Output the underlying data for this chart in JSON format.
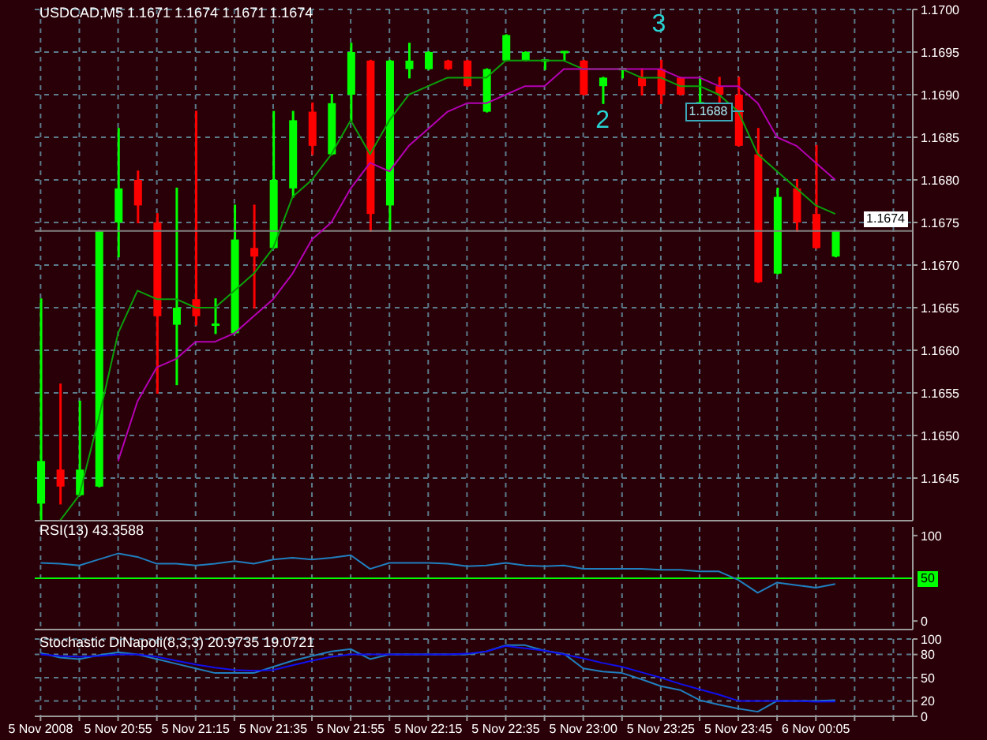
{
  "chart_data": [
    {
      "type": "candlestick",
      "title": "USDCAD,M5 1.1671 1.1674 1.1671 1.1674",
      "categories": [
        null,
        null,
        null,
        null,
        null,
        null,
        null,
        null,
        null,
        null,
        null,
        null,
        null,
        null,
        null,
        null,
        null,
        null,
        null,
        null,
        null,
        null,
        null,
        null,
        null,
        null,
        null,
        null,
        null,
        null,
        null,
        null,
        null,
        null,
        null,
        null,
        null,
        null,
        null,
        null,
        null,
        null
      ],
      "ohlc": [
        [
          1.1642,
          1.1666,
          1.164,
          1.1647
        ],
        [
          1.1646,
          1.1656,
          1.1642,
          1.1644
        ],
        [
          1.1643,
          1.1654,
          1.1643,
          1.1646
        ],
        [
          1.1644,
          1.1674,
          1.1644,
          1.1674
        ],
        [
          1.1675,
          1.1686,
          1.1671,
          1.1679
        ],
        [
          1.168,
          1.1681,
          1.1675,
          1.1677
        ],
        [
          1.1675,
          1.1676,
          1.1655,
          1.1664
        ],
        [
          1.1663,
          1.1679,
          1.1656,
          1.1665
        ],
        [
          1.1666,
          1.1688,
          1.1663,
          1.1664
        ],
        [
          1.1663,
          1.1666,
          1.1662,
          1.1663
        ],
        [
          1.1662,
          1.1677,
          1.1662,
          1.1673
        ],
        [
          1.1672,
          1.1677,
          1.1665,
          1.1671
        ],
        [
          1.1672,
          1.1688,
          1.1672,
          1.168
        ],
        [
          1.1679,
          1.1688,
          1.1678,
          1.1687
        ],
        [
          1.1688,
          1.1689,
          1.1683,
          1.1684
        ],
        [
          1.1683,
          1.169,
          1.1683,
          1.1689
        ],
        [
          1.169,
          1.1696,
          1.1687,
          1.1695
        ],
        [
          1.1694,
          1.1694,
          1.1674,
          1.1676
        ],
        [
          1.1677,
          1.1694,
          1.1674,
          1.1694
        ],
        [
          1.1693,
          1.1696,
          1.1692,
          1.1694
        ],
        [
          1.1693,
          1.1695,
          1.1693,
          1.1695
        ],
        [
          1.1694,
          1.1694,
          1.1693,
          1.1693
        ],
        [
          1.1694,
          1.1694,
          1.1691,
          1.1691
        ],
        [
          1.1688,
          1.1693,
          1.1688,
          1.1693
        ],
        [
          1.1694,
          1.1697,
          1.1694,
          1.1697
        ],
        [
          1.1694,
          1.1695,
          1.1694,
          1.1695
        ],
        [
          1.1694,
          1.1694,
          1.1693,
          1.1694
        ],
        [
          1.1695,
          1.1695,
          1.1694,
          1.1695
        ],
        [
          1.1694,
          1.1694,
          1.169,
          1.169
        ],
        [
          1.1691,
          1.1692,
          1.1689,
          1.1692
        ],
        [
          1.1693,
          1.1693,
          1.1692,
          1.1693
        ],
        [
          1.1692,
          1.1693,
          1.169,
          1.1691
        ],
        [
          1.1693,
          1.1694,
          1.1689,
          1.169
        ],
        [
          1.1692,
          1.1692,
          1.169,
          1.169
        ],
        [
          1.1689,
          1.1692,
          1.1689,
          1.1689
        ],
        [
          1.1691,
          1.1692,
          1.1689,
          1.169
        ],
        [
          1.169,
          1.1692,
          1.1684,
          1.1684
        ],
        [
          1.1683,
          1.1686,
          1.1668,
          1.1668
        ],
        [
          1.1669,
          1.1679,
          1.1669,
          1.1678
        ],
        [
          1.1679,
          1.168,
          1.1674,
          1.1675
        ],
        [
          1.1676,
          1.1684,
          1.1672,
          1.1672
        ],
        [
          1.1671,
          1.1674,
          1.1671,
          1.1674
        ]
      ],
      "colors": [
        "#00ff00",
        "#ff0000",
        "#00ff00",
        "#00ff00",
        "#00ff00",
        "#ff0000",
        "#ff0000",
        "#00ff00",
        "#ff0000",
        "#00ff00",
        "#00ff00",
        "#ff0000",
        "#00ff00",
        "#00ff00",
        "#ff0000",
        "#00ff00",
        "#00ff00",
        "#ff0000",
        "#00ff00",
        "#00ff00",
        "#00ff00",
        "#ff0000",
        "#ff0000",
        "#00ff00",
        "#00ff00",
        "#00ff00",
        "#00ff00",
        "#00ff00",
        "#ff0000",
        "#00ff00",
        "#00ff00",
        "#ff0000",
        "#ff0000",
        "#ff0000",
        "#00ff00",
        "#ff0000",
        "#ff0000",
        "#ff0000",
        "#00ff00",
        "#ff0000",
        "#ff0000",
        "#00ff00"
      ],
      "series": [
        {
          "type": "line",
          "color": "#0aa00a",
          "values": [
            null,
            1.164,
            1.1643,
            1.1652,
            1.1662,
            1.1667,
            1.1666,
            1.1666,
            1.1665,
            1.1665,
            1.1667,
            1.1669,
            1.1672,
            1.1678,
            1.168,
            1.1683,
            1.1687,
            1.1683,
            1.1687,
            1.169,
            1.1691,
            1.1692,
            1.1692,
            1.1692,
            1.1694,
            1.1694,
            1.1694,
            1.1694,
            1.1693,
            1.1693,
            1.1693,
            1.1692,
            1.1692,
            1.1691,
            1.1691,
            1.169,
            1.1688,
            1.1683,
            1.1681,
            1.1679,
            1.1677,
            1.1676
          ]
        },
        {
          "type": "line",
          "color": "#b400b4",
          "values": [
            null,
            null,
            null,
            null,
            1.1647,
            1.1654,
            1.1658,
            1.1659,
            1.1661,
            1.1661,
            1.1662,
            1.1664,
            1.1666,
            1.1669,
            1.1673,
            1.1675,
            1.1679,
            1.1682,
            1.1681,
            1.1684,
            1.1686,
            1.1688,
            1.1689,
            1.1689,
            1.169,
            1.1691,
            1.1691,
            1.1693,
            1.1693,
            1.1693,
            1.1693,
            1.1693,
            1.1693,
            1.1692,
            1.1692,
            1.1691,
            1.1691,
            1.1689,
            1.1685,
            1.1684,
            1.1682,
            1.168
          ]
        }
      ],
      "ylim": [
        1.164,
        1.17
      ],
      "yticks": [
        1.1645,
        {
          "value": 1.165,
          "label": "1.1650"
        },
        1.1655,
        {
          "value": 1.166,
          "label": "1.1660"
        },
        1.1665,
        {
          "value": 1.167,
          "label": "1.1670"
        },
        1.1675,
        {
          "value": 1.168,
          "label": "1.1680"
        },
        1.1685,
        {
          "value": 1.169,
          "label": "1.1690"
        },
        1.1695,
        {
          "value": 1.17,
          "label": "1.1700"
        }
      ],
      "grid": true,
      "tick_labels": "y",
      "ref_lines": [
        {
          "axis": "y",
          "value": 1.1674,
          "label": "1.1674",
          "color": "#808080"
        }
      ],
      "annotations": [
        "3",
        "2",
        {
          "text": "1.1688",
          "y": 1.1688
        }
      ]
    },
    {
      "type": "line",
      "title": "RSI(13) 43.3588",
      "categories": [
        null,
        null,
        null,
        null,
        null,
        null,
        null,
        null,
        null,
        null,
        null,
        null,
        null,
        null,
        null,
        null,
        null,
        null,
        null,
        null,
        null,
        null,
        null,
        null,
        null,
        null,
        null,
        null,
        null,
        null,
        null,
        null,
        null,
        null,
        null,
        null,
        null,
        null,
        null,
        null,
        null,
        null
      ],
      "series": [
        {
          "color": "#1f7fbf",
          "values": [
            68,
            67,
            65,
            72,
            79,
            75,
            67,
            67,
            65,
            67,
            70,
            67,
            72,
            74,
            72,
            74,
            77,
            61,
            68,
            68,
            68,
            67,
            64,
            65,
            68,
            65,
            64,
            65,
            61,
            61,
            61,
            61,
            60,
            60,
            58,
            58,
            48,
            33,
            45,
            42,
            39,
            43.3588
          ]
        }
      ],
      "ylim": [
        -10,
        110
      ],
      "yticks": [
        0,
        100
      ],
      "grid": "x",
      "tick_labels": "y",
      "ref_lines": [
        {
          "axis": "y",
          "value": 50,
          "label": "50",
          "color": "#00ff00"
        }
      ]
    },
    {
      "type": "line",
      "title": "Stochastic DiNapoli(8,3,3) 20.9735 19.0721",
      "categories": [
        "5 Nov 2008",
        null,
        null,
        null,
        "5 Nov 20:55",
        null,
        null,
        null,
        "5 Nov 21:15",
        null,
        null,
        null,
        "5 Nov 21:35",
        null,
        null,
        null,
        "5 Nov 21:55",
        null,
        null,
        null,
        "5 Nov 22:15",
        null,
        null,
        null,
        "5 Nov 22:35",
        null,
        null,
        null,
        "5 Nov 23:00",
        null,
        null,
        null,
        "5 Nov 23:25",
        null,
        null,
        null,
        "5 Nov 23:45",
        null,
        null,
        null,
        "6 Nov 00:05",
        null
      ],
      "series": [
        {
          "color": "#1f7fbf",
          "values": [
            82,
            76,
            74,
            79,
            83,
            80,
            74,
            68,
            62,
            56,
            56,
            56,
            64,
            72,
            78,
            84,
            87,
            74,
            80,
            80,
            80,
            80,
            80,
            84,
            92,
            92,
            85,
            81,
            62,
            58,
            56,
            48,
            39,
            34,
            21,
            15,
            10,
            6,
            20,
            20,
            20,
            20.9735
          ]
        },
        {
          "color": "#1010f0",
          "values": [
            80,
            78,
            77,
            78,
            80,
            80,
            77,
            72,
            67,
            63,
            60,
            59,
            60,
            66,
            72,
            77,
            80,
            80,
            80,
            80,
            80,
            80,
            81,
            84,
            91,
            88,
            85,
            80,
            75,
            69,
            64,
            57,
            50,
            42,
            35,
            28,
            20,
            20,
            20,
            20,
            19,
            19.0721
          ]
        }
      ],
      "ylim": [
        0,
        100
      ],
      "yticks": [
        0,
        20,
        50,
        80,
        100
      ],
      "grid": true
    }
  ]
}
